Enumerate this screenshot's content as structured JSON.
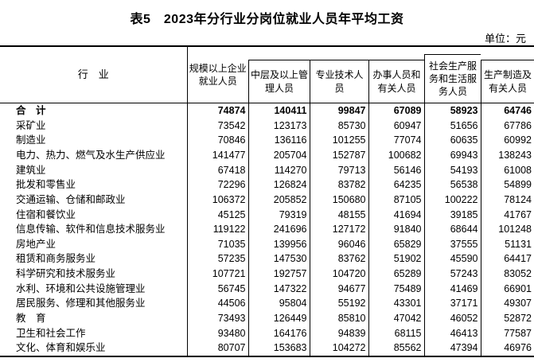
{
  "chart_data": {
    "type": "table",
    "title": "表5　2023年分行业分岗位就业人员年平均工资",
    "unit_label": "单位：元",
    "industry_header": "行　业",
    "position_columns": [
      "规模以上企业就业人员",
      "中层及以上管理人员",
      "专业技术人员",
      "办事人员和有关人员",
      "社会生产服务和生活服务人员",
      "生产制造及有关人员"
    ],
    "rows": [
      {
        "industry": "合　计",
        "bold": true,
        "values": [
          74874,
          140411,
          99847,
          67089,
          58923,
          64746
        ]
      },
      {
        "industry": "采矿业",
        "values": [
          73542,
          123173,
          85730,
          60947,
          51656,
          67786
        ]
      },
      {
        "industry": "制造业",
        "values": [
          70846,
          136116,
          101255,
          77074,
          60635,
          60992
        ]
      },
      {
        "industry": "电力、热力、燃气及水生产供应业",
        "values": [
          141477,
          205704,
          152787,
          100682,
          69943,
          138243
        ]
      },
      {
        "industry": "建筑业",
        "values": [
          67418,
          114270,
          79713,
          56146,
          54193,
          61008
        ]
      },
      {
        "industry": "批发和零售业",
        "values": [
          72296,
          126824,
          83782,
          64235,
          56538,
          54899
        ]
      },
      {
        "industry": "交通运输、仓储和邮政业",
        "values": [
          106372,
          205852,
          150680,
          87105,
          100222,
          78124
        ]
      },
      {
        "industry": "住宿和餐饮业",
        "values": [
          45125,
          79319,
          48155,
          41694,
          39185,
          41767
        ]
      },
      {
        "industry": "信息传输、软件和信息技术服务业",
        "values": [
          119122,
          241696,
          127172,
          91840,
          68644,
          101248
        ]
      },
      {
        "industry": "房地产业",
        "values": [
          71035,
          139956,
          96046,
          65829,
          37555,
          51131
        ]
      },
      {
        "industry": "租赁和商务服务业",
        "values": [
          57235,
          147530,
          83762,
          51902,
          45590,
          64417
        ]
      },
      {
        "industry": "科学研究和技术服务业",
        "values": [
          107721,
          192757,
          104720,
          65289,
          57243,
          83052
        ]
      },
      {
        "industry": "水利、环境和公共设施管理业",
        "values": [
          56745,
          147322,
          94677,
          75489,
          41469,
          66901
        ]
      },
      {
        "industry": "居民服务、修理和其他服务业",
        "values": [
          44506,
          95804,
          55192,
          43301,
          37171,
          49307
        ]
      },
      {
        "industry": "教　育",
        "values": [
          73493,
          126449,
          85810,
          47042,
          46052,
          52872
        ]
      },
      {
        "industry": "卫生和社会工作",
        "values": [
          93480,
          164176,
          94839,
          68115,
          46413,
          77587
        ]
      },
      {
        "industry": "文化、体育和娱乐业",
        "values": [
          80707,
          153683,
          104272,
          85562,
          47394,
          46976
        ]
      }
    ],
    "colors": {
      "text": "#000000",
      "border": "#000000",
      "background": "#ffffff"
    }
  }
}
